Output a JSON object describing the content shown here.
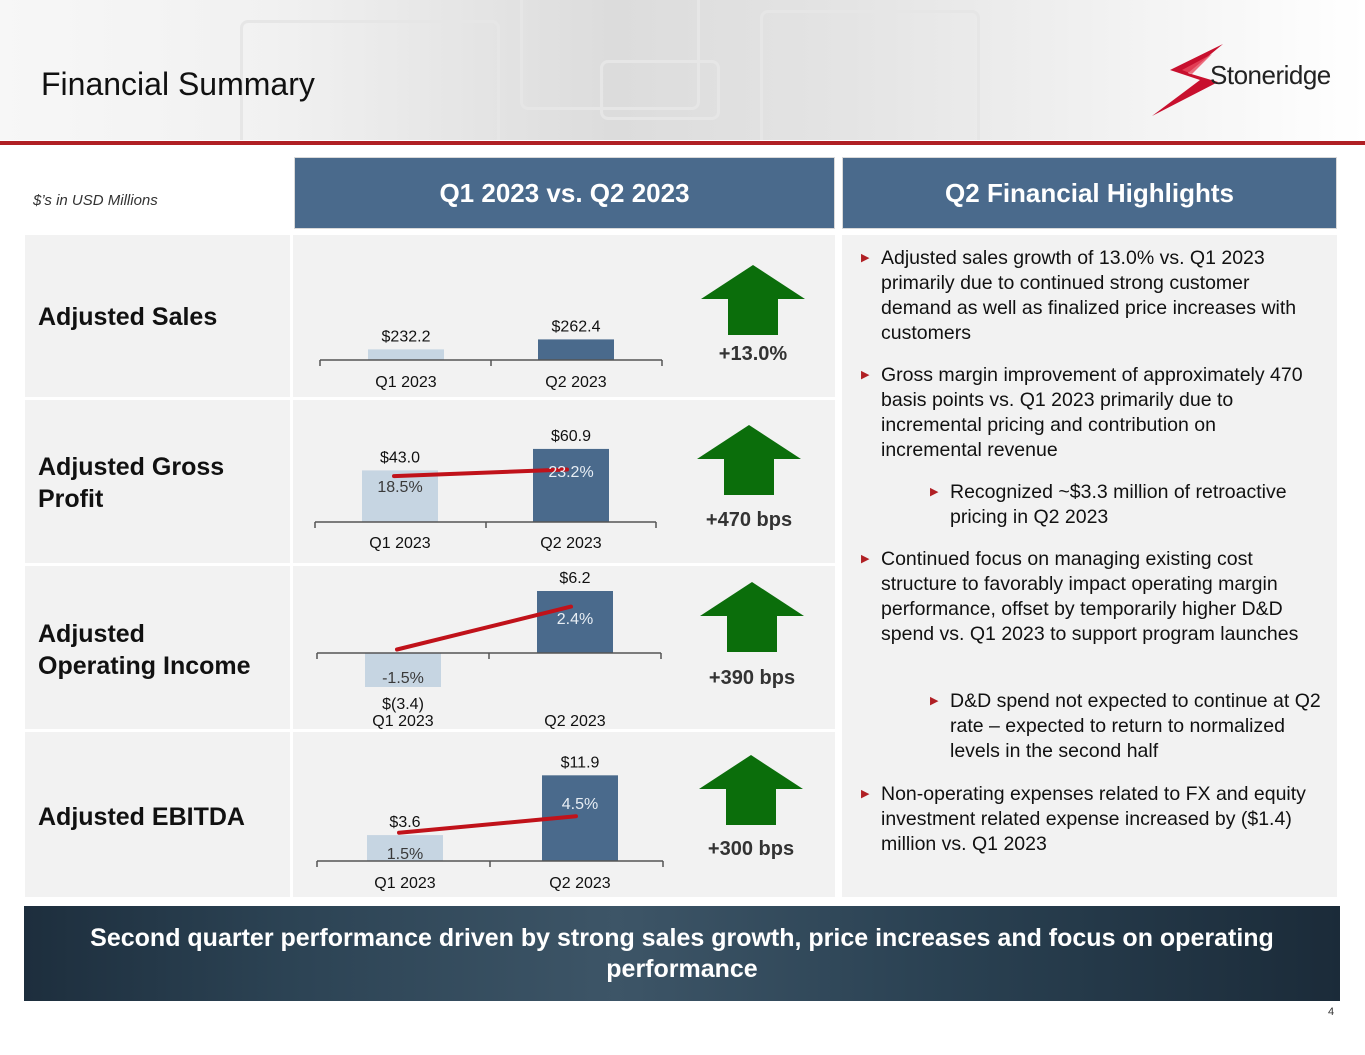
{
  "title": "Financial Summary",
  "logo_text": "Stoneridge",
  "units_note": "$’s in USD Millions",
  "left_header": "Q1 2023 vs. Q2 2023",
  "right_header": "Q2 Financial Highlights",
  "colors": {
    "q1_bar": "#c6d5e2",
    "q2_bar": "#4a6a8c",
    "margin_line": "#c0121a",
    "arrow": "#0b6e0b",
    "header": "#4a6a8c",
    "accent_red": "#b01f24"
  },
  "chart_data": [
    {
      "type": "bar",
      "title": "Adjusted Sales",
      "categories": [
        "Q1 2023",
        "Q2 2023"
      ],
      "values": [
        232.2,
        262.4
      ],
      "value_labels": [
        "$232.2",
        "$262.4"
      ],
      "change": "+13.0%"
    },
    {
      "type": "bar",
      "title": "Adjusted Gross Profit",
      "categories": [
        "Q1 2023",
        "Q2 2023"
      ],
      "values": [
        43.0,
        60.9
      ],
      "value_labels": [
        "$43.0",
        "$60.9"
      ],
      "margins": [
        18.5,
        23.2
      ],
      "margin_labels": [
        "18.5%",
        "23.2%"
      ],
      "change": "+470 bps"
    },
    {
      "type": "bar",
      "title": "Adjusted Operating Income",
      "categories": [
        "Q1 2023",
        "Q2 2023"
      ],
      "values": [
        -3.4,
        6.2
      ],
      "value_labels": [
        "$(3.4)",
        "$6.2"
      ],
      "margins": [
        -1.5,
        2.4
      ],
      "margin_labels": [
        "-1.5%",
        "2.4%"
      ],
      "change": "+390 bps"
    },
    {
      "type": "bar",
      "title": "Adjusted EBITDA",
      "categories": [
        "Q1 2023",
        "Q2 2023"
      ],
      "values": [
        3.6,
        11.9
      ],
      "value_labels": [
        "$3.6",
        "$11.9"
      ],
      "margins": [
        1.5,
        4.5
      ],
      "margin_labels": [
        "1.5%",
        "4.5%"
      ],
      "change": "+300 bps"
    }
  ],
  "row_labels": {
    "sales": "Adjusted Sales",
    "gross_line1": "Adjusted Gross",
    "gross_line2": "Profit",
    "opinc_line1": "Adjusted",
    "opinc_line2": "Operating Income",
    "ebitda": "Adjusted EBITDA"
  },
  "highlights": {
    "b1": "Adjusted sales growth of 13.0% vs. Q1 2023 primarily due to continued strong customer demand as well as finalized price increases with customers",
    "b2": "Gross margin improvement of approximately 470 basis points vs. Q1 2023 primarily due to incremental pricing and contribution on incremental revenue",
    "b2a": "Recognized ~$3.3 million of retroactive pricing in Q2 2023",
    "b3": "Continued focus on managing existing cost structure to favorably impact operating margin performance, offset by temporarily higher D&D spend vs. Q1 2023 to support program launches",
    "b3a": "D&D spend not expected to continue at Q2 rate – expected to return to normalized levels in the second half",
    "b4": "Non-operating expenses related to FX and equity investment related expense increased by ($1.4) million vs. Q1 2023"
  },
  "banner": "Second quarter performance driven by strong sales growth, price increases and focus on operating performance",
  "page_number": "4"
}
